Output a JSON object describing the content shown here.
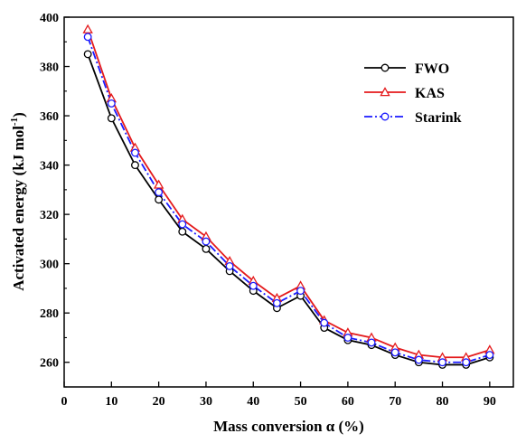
{
  "chart_data": {
    "type": "line",
    "xlabel": "Mass conversion α (%)",
    "ylabel_main": "Activated energy (kJ mol",
    "ylabel_sup": "-1",
    "ylabel_close": ")",
    "xlim": [
      0,
      95
    ],
    "ylim": [
      250,
      400
    ],
    "xticks": [
      0,
      10,
      20,
      30,
      40,
      50,
      60,
      70,
      80,
      90
    ],
    "yticks": [
      260,
      280,
      300,
      320,
      340,
      360,
      380,
      400
    ],
    "legend_position": "top-right",
    "x": [
      5,
      10,
      15,
      20,
      25,
      30,
      35,
      40,
      45,
      50,
      55,
      60,
      65,
      70,
      75,
      80,
      85,
      90
    ],
    "series": [
      {
        "name": "FWO",
        "color": "#000000",
        "marker": "circle",
        "dash": "solid",
        "values": [
          385,
          359,
          340,
          326,
          313,
          306,
          297,
          289,
          282,
          287,
          274,
          269,
          267,
          263,
          260,
          259,
          259,
          262
        ]
      },
      {
        "name": "KAS",
        "color": "#e41a1c",
        "marker": "triangle",
        "dash": "solid",
        "values": [
          395,
          367,
          347,
          332,
          318,
          311,
          301,
          293,
          286,
          291,
          277,
          272,
          270,
          266,
          263,
          262,
          262,
          265
        ]
      },
      {
        "name": "Starink",
        "color": "#1a1aff",
        "marker": "circle",
        "dash": "dashdot",
        "values": [
          392,
          365,
          345,
          329,
          316,
          309,
          299,
          291,
          284,
          289,
          276,
          270,
          268,
          264,
          261,
          260,
          260,
          263
        ]
      }
    ]
  }
}
